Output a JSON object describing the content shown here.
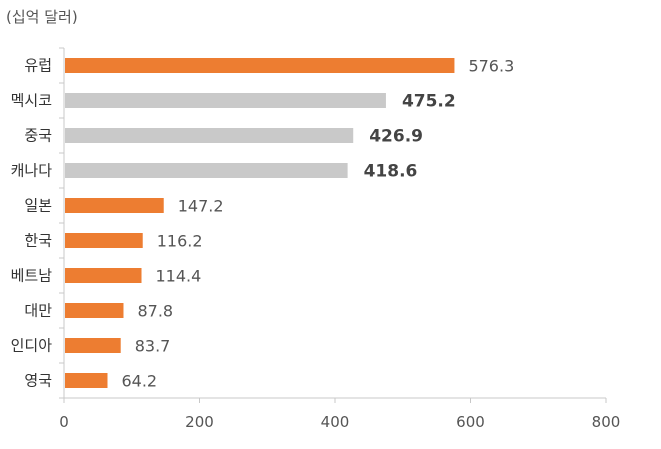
{
  "chart_data": {
    "type": "bar",
    "orientation": "horizontal",
    "unit_label": "(십억 달러)",
    "categories": [
      "유럽",
      "멕시코",
      "중국",
      "캐나다",
      "일본",
      "한국",
      "베트남",
      "대만",
      "인디아",
      "영국"
    ],
    "values": [
      576.3,
      475.2,
      426.9,
      418.6,
      147.2,
      116.2,
      114.4,
      87.8,
      83.7,
      64.2
    ],
    "value_labels": [
      "576.3",
      "475.2",
      "426.9",
      "418.6",
      "147.2",
      "116.2",
      "114.4",
      "87.8",
      "83.7",
      "64.2"
    ],
    "bar_colors": [
      "#ED7D31",
      "#C9C9C9",
      "#C9C9C9",
      "#C9C9C9",
      "#ED7D31",
      "#ED7D31",
      "#ED7D31",
      "#ED7D31",
      "#ED7D31",
      "#ED7D31"
    ],
    "highlight_labels": [
      false,
      true,
      true,
      true,
      false,
      false,
      false,
      false,
      false,
      false
    ],
    "xlim": [
      0,
      800
    ],
    "xticks": [
      0,
      200,
      400,
      600,
      800
    ],
    "grid": false,
    "legend": "none"
  }
}
